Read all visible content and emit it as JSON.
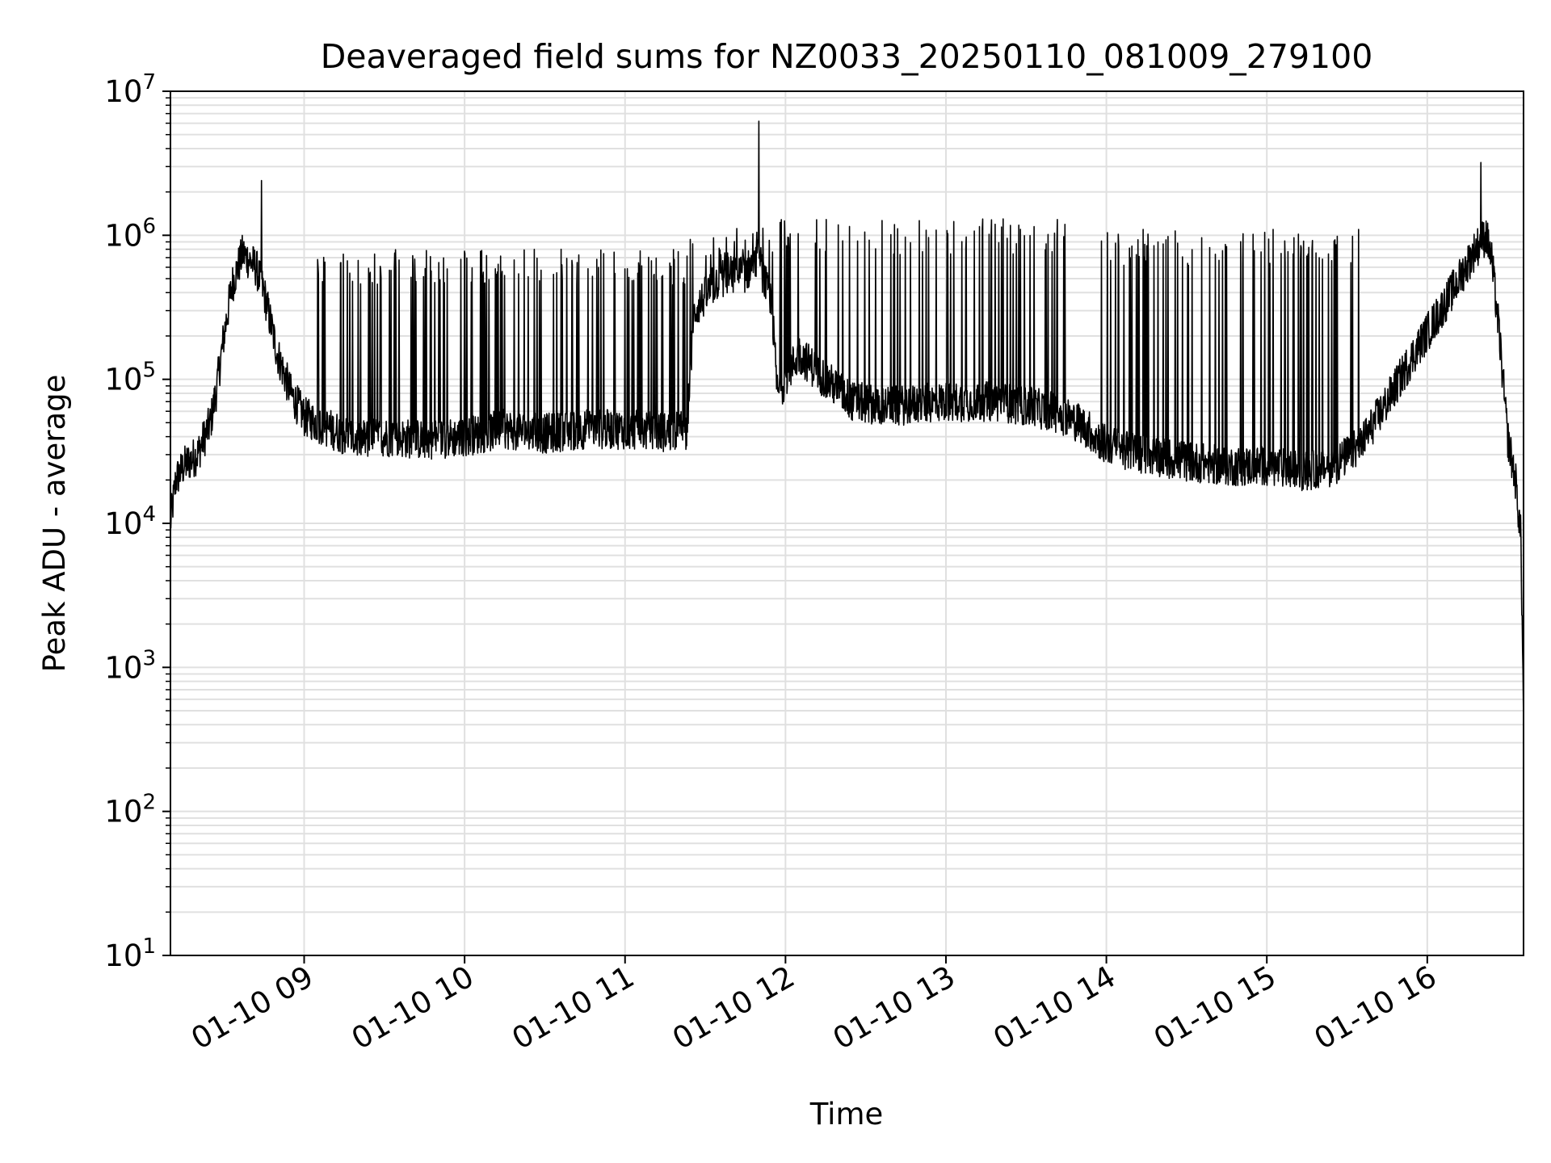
{
  "chart_data": {
    "type": "line",
    "title": "Deaveraged field sums for NZ0033_20250110_081009_279100",
    "xlabel": "Time",
    "ylabel": "Peak ADU - average",
    "yscale": "log",
    "ylim": [
      10,
      10000000
    ],
    "xlim": [
      "2025-01-10 08:10",
      "2025-01-10 16:36"
    ],
    "grid": true,
    "line_color": "#000000",
    "x_ticks": [
      {
        "time": "2025-01-10 09:00",
        "label": "01-10 09"
      },
      {
        "time": "2025-01-10 10:00",
        "label": "01-10 10"
      },
      {
        "time": "2025-01-10 11:00",
        "label": "01-10 11"
      },
      {
        "time": "2025-01-10 12:00",
        "label": "01-10 12"
      },
      {
        "time": "2025-01-10 13:00",
        "label": "01-10 13"
      },
      {
        "time": "2025-01-10 14:00",
        "label": "01-10 14"
      },
      {
        "time": "2025-01-10 15:00",
        "label": "01-10 15"
      },
      {
        "time": "2025-01-10 16:00",
        "label": "01-10 16"
      }
    ],
    "y_ticks": [
      {
        "value": 10,
        "base": "10",
        "exp": "1"
      },
      {
        "value": 100,
        "base": "10",
        "exp": "2"
      },
      {
        "value": 1000,
        "base": "10",
        "exp": "3"
      },
      {
        "value": 10000,
        "base": "10",
        "exp": "4"
      },
      {
        "value": 100000,
        "base": "10",
        "exp": "5"
      },
      {
        "value": 1000000,
        "base": "10",
        "exp": "6"
      },
      {
        "value": 10000000,
        "base": "10",
        "exp": "7"
      }
    ],
    "series": [
      {
        "baseline": [
          [
            "2025-01-10 08:10",
            10000
          ],
          [
            "2025-01-10 08:12",
            20000
          ],
          [
            "2025-01-10 08:15",
            25000
          ],
          [
            "2025-01-10 08:20",
            30000
          ],
          [
            "2025-01-10 08:25",
            50000
          ],
          [
            "2025-01-10 08:27",
            80000
          ],
          [
            "2025-01-10 08:30",
            200000
          ],
          [
            "2025-01-10 08:33",
            450000
          ],
          [
            "2025-01-10 08:37",
            750000
          ],
          [
            "2025-01-10 08:42",
            600000
          ],
          [
            "2025-01-10 08:45",
            400000
          ],
          [
            "2025-01-10 08:50",
            150000
          ],
          [
            "2025-01-10 08:55",
            80000
          ],
          [
            "2025-01-10 09:00",
            55000
          ],
          [
            "2025-01-10 09:10",
            45000
          ],
          [
            "2025-01-10 09:20",
            38000
          ],
          [
            "2025-01-10 09:30",
            40000
          ],
          [
            "2025-01-10 09:45",
            38000
          ],
          [
            "2025-01-10 10:00",
            40000
          ],
          [
            "2025-01-10 10:15",
            45000
          ],
          [
            "2025-01-10 10:30",
            42000
          ],
          [
            "2025-01-10 10:45",
            45000
          ],
          [
            "2025-01-10 11:00",
            45000
          ],
          [
            "2025-01-10 11:15",
            43000
          ],
          [
            "2025-01-10 11:23",
            45000
          ],
          [
            "2025-01-10 11:26",
            300000
          ],
          [
            "2025-01-10 11:35",
            500000
          ],
          [
            "2025-01-10 11:45",
            550000
          ],
          [
            "2025-01-10 11:50",
            700000
          ],
          [
            "2025-01-10 11:55",
            300000
          ],
          [
            "2025-01-10 11:57",
            80000
          ],
          [
            "2025-01-10 12:05",
            150000
          ],
          [
            "2025-01-10 12:15",
            100000
          ],
          [
            "2025-01-10 12:25",
            70000
          ],
          [
            "2025-01-10 12:40",
            65000
          ],
          [
            "2025-01-10 13:00",
            70000
          ],
          [
            "2025-01-10 13:20",
            70000
          ],
          [
            "2025-01-10 13:40",
            60000
          ],
          [
            "2025-01-10 13:50",
            50000
          ],
          [
            "2025-01-10 14:00",
            35000
          ],
          [
            "2025-01-10 14:15",
            30000
          ],
          [
            "2025-01-10 14:30",
            27000
          ],
          [
            "2025-01-10 14:45",
            25000
          ],
          [
            "2025-01-10 15:00",
            25000
          ],
          [
            "2025-01-10 15:15",
            23000
          ],
          [
            "2025-01-10 15:25",
            25000
          ],
          [
            "2025-01-10 15:35",
            35000
          ],
          [
            "2025-01-10 15:45",
            70000
          ],
          [
            "2025-01-10 15:55",
            150000
          ],
          [
            "2025-01-10 16:05",
            300000
          ],
          [
            "2025-01-10 16:12",
            500000
          ],
          [
            "2025-01-10 16:18",
            800000
          ],
          [
            "2025-01-10 16:22",
            1000000
          ],
          [
            "2025-01-10 16:24",
            700000
          ],
          [
            "2025-01-10 16:27",
            200000
          ],
          [
            "2025-01-10 16:30",
            40000
          ],
          [
            "2025-01-10 16:33",
            20000
          ],
          [
            "2025-01-10 16:35",
            8000
          ],
          [
            "2025-01-10 16:36",
            500
          ]
        ],
        "spike_segments": [
          {
            "start": "2025-01-10 09:05",
            "end": "2025-01-10 11:23",
            "peak": 800000
          },
          {
            "start": "2025-01-10 11:23",
            "end": "2025-01-10 11:57",
            "peak": 1200000
          },
          {
            "start": "2025-01-10 11:57",
            "end": "2025-01-10 13:45",
            "peak": 1300000
          },
          {
            "start": "2025-01-10 13:55",
            "end": "2025-01-10 15:35",
            "peak": 1100000
          }
        ],
        "peaks": [
          [
            "2025-01-10 08:44",
            2400000
          ],
          [
            "2025-01-10 11:50",
            6200000
          ],
          [
            "2025-01-10 16:20",
            3200000
          ]
        ]
      }
    ]
  }
}
